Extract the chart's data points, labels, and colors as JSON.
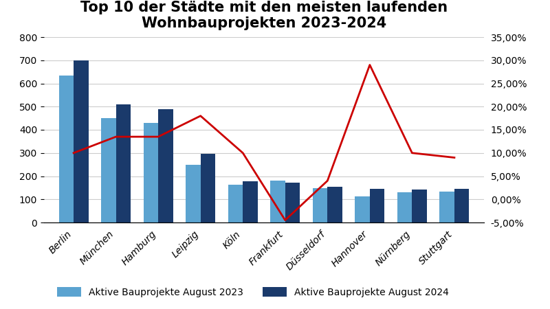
{
  "title": "Top 10 der Städte mit den meisten laufenden\nWohnbauprojekten 2023-2024",
  "categories": [
    "Berlin",
    "München",
    "Hamburg",
    "Leipzig",
    "Köln",
    "Frankfurt",
    "Düsseldorf",
    "Hannover",
    "Nürnberg",
    "Stuttgart"
  ],
  "values_2023": [
    635,
    450,
    430,
    250,
    162,
    180,
    147,
    112,
    130,
    133
  ],
  "values_2024": [
    698,
    510,
    488,
    295,
    178,
    172,
    153,
    145,
    143,
    145
  ],
  "pct_change": [
    0.1,
    0.135,
    0.135,
    0.18,
    0.1,
    -0.045,
    0.04,
    0.29,
    0.1,
    0.09
  ],
  "color_2023": "#5BA3D0",
  "color_2024": "#1A3A6B",
  "line_color": "#CC0000",
  "background_color": "#FFFFFF",
  "ylim_left": [
    0,
    800
  ],
  "ylim_right": [
    -0.05,
    0.35
  ],
  "yticks_left": [
    0,
    100,
    200,
    300,
    400,
    500,
    600,
    700,
    800
  ],
  "yticks_right": [
    -0.05,
    0.0,
    0.05,
    0.1,
    0.15,
    0.2,
    0.25,
    0.3,
    0.35
  ],
  "legend_labels": [
    "Aktive Bauprojekte August 2023",
    "Aktive Bauprojekte August 2024"
  ],
  "title_fontsize": 15,
  "tick_fontsize": 10,
  "legend_fontsize": 10
}
